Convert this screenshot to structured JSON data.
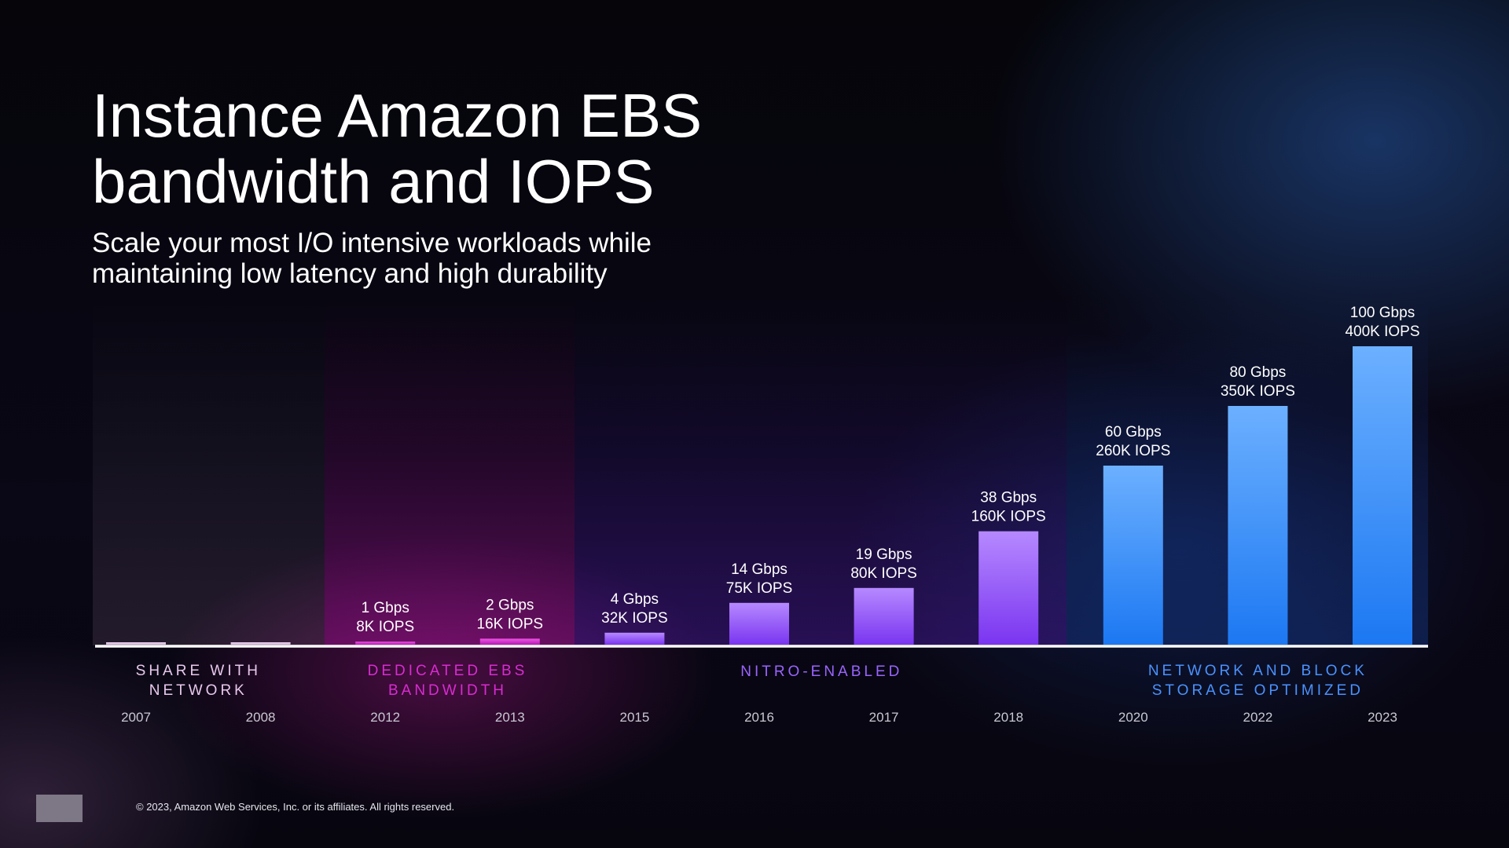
{
  "header": {
    "title_lines": [
      "Instance Amazon EBS",
      "bandwidth and IOPS"
    ],
    "subtitle_lines": [
      "Scale your most I/O intensive workloads while",
      "maintaining low latency and high durability"
    ]
  },
  "colors": {
    "share": "#e8c8ec",
    "dedicated": "#d92bd2",
    "nitro": "#9a64ff",
    "network": "#4a92ff",
    "axis": "#ffffff"
  },
  "chart_data": {
    "type": "bar",
    "title": "Instance Amazon EBS bandwidth and IOPS",
    "xlabel": "",
    "ylabel": "",
    "ylim": [
      0,
      100
    ],
    "grid": false,
    "categories": [
      "2007",
      "2008",
      "2012",
      "2013",
      "2015",
      "2016",
      "2017",
      "2018",
      "2020",
      "2022",
      "2023"
    ],
    "series": [
      {
        "name": "EBS bandwidth (Gbps)",
        "values": [
          0.25,
          0.5,
          1,
          2,
          4,
          14,
          19,
          38,
          60,
          80,
          100
        ]
      }
    ],
    "data_labels": [
      [
        "",
        ""
      ],
      [
        "",
        ""
      ],
      [
        "1 Gbps",
        "8K IOPS"
      ],
      [
        "2 Gbps",
        "16K IOPS"
      ],
      [
        "4 Gbps",
        "32K IOPS"
      ],
      [
        "14 Gbps",
        "75K IOPS"
      ],
      [
        "19 Gbps",
        "80K IOPS"
      ],
      [
        "38 Gbps",
        "160K IOPS"
      ],
      [
        "60 Gbps",
        "260K IOPS"
      ],
      [
        "80 Gbps",
        "350K IOPS"
      ],
      [
        "100 Gbps",
        "400K IOPS"
      ]
    ],
    "groups": [
      {
        "id": "share",
        "label_lines": [
          "SHARE WITH",
          "NETWORK"
        ],
        "first": 0,
        "last": 1
      },
      {
        "id": "dedicated",
        "label_lines": [
          "DEDICATED EBS",
          "BANDWIDTH"
        ],
        "first": 2,
        "last": 3
      },
      {
        "id": "nitro",
        "label_lines": [
          "NITRO-ENABLED"
        ],
        "first": 4,
        "last": 7
      },
      {
        "id": "network",
        "label_lines": [
          "NETWORK AND BLOCK",
          "STORAGE OPTIMIZED"
        ],
        "first": 8,
        "last": 10
      }
    ]
  },
  "footer": {
    "copyright": "© 2023, Amazon Web Services, Inc. or its affiliates. All rights reserved."
  }
}
